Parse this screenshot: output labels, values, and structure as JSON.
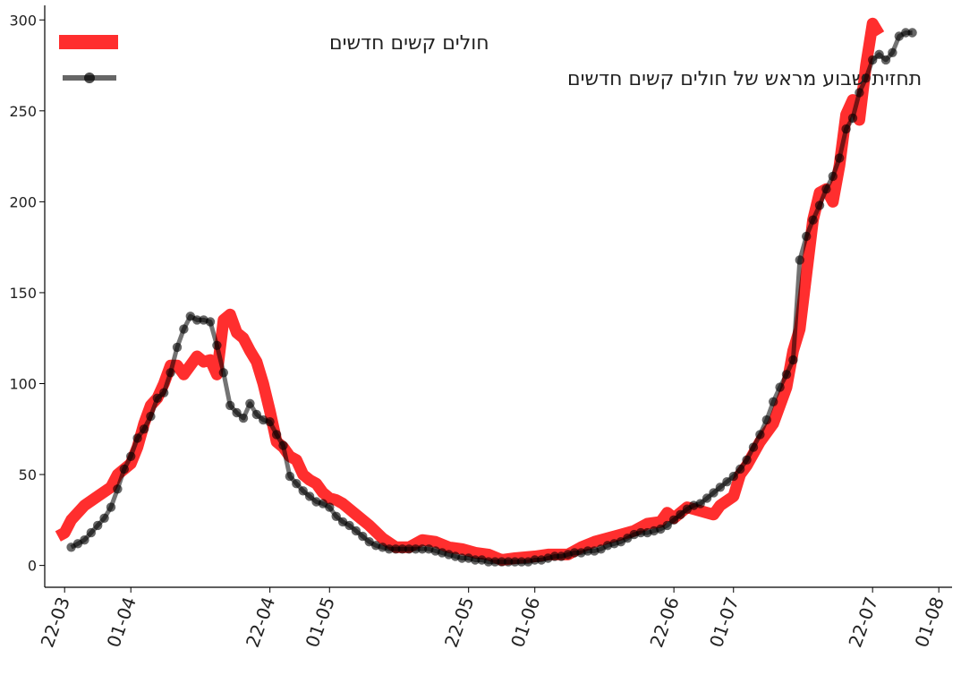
{
  "chart_data": {
    "type": "line",
    "ylim": [
      -12,
      308
    ],
    "yticks": [
      0,
      50,
      100,
      150,
      200,
      250,
      300
    ],
    "xrange": [
      "2020-03-19",
      "2020-08-03"
    ],
    "xticks": [
      {
        "date": "2020-03-22",
        "label": "22-03"
      },
      {
        "date": "2020-04-01",
        "label": "01-04"
      },
      {
        "date": "2020-04-22",
        "label": "22-04"
      },
      {
        "date": "2020-05-01",
        "label": "01-05"
      },
      {
        "date": "2020-05-22",
        "label": "22-05"
      },
      {
        "date": "2020-06-01",
        "label": "01-06"
      },
      {
        "date": "2020-06-22",
        "label": "22-06"
      },
      {
        "date": "2020-07-01",
        "label": "01-07"
      },
      {
        "date": "2020-07-22",
        "label": "22-07"
      },
      {
        "date": "2020-08-01",
        "label": "01-08"
      }
    ],
    "legend": {
      "placement": "top-left"
    },
    "series": [
      {
        "name": "חולים קשים חדשים",
        "color": "#ff0000",
        "style": "thick-line",
        "points": [
          [
            "2020-03-21",
            16
          ],
          [
            "2020-03-22",
            18
          ],
          [
            "2020-03-23",
            25
          ],
          [
            "2020-03-25",
            33
          ],
          [
            "2020-03-27",
            38
          ],
          [
            "2020-03-29",
            43
          ],
          [
            "2020-03-30",
            50
          ],
          [
            "2020-04-01",
            56
          ],
          [
            "2020-04-02",
            65
          ],
          [
            "2020-04-03",
            78
          ],
          [
            "2020-04-04",
            88
          ],
          [
            "2020-04-05",
            92
          ],
          [
            "2020-04-06",
            100
          ],
          [
            "2020-04-07",
            110
          ],
          [
            "2020-04-08",
            110
          ],
          [
            "2020-04-09",
            105
          ],
          [
            "2020-04-10",
            110
          ],
          [
            "2020-04-11",
            115
          ],
          [
            "2020-04-12",
            112
          ],
          [
            "2020-04-13",
            113
          ],
          [
            "2020-04-14",
            105
          ],
          [
            "2020-04-15",
            135
          ],
          [
            "2020-04-16",
            138
          ],
          [
            "2020-04-17",
            128
          ],
          [
            "2020-04-18",
            125
          ],
          [
            "2020-04-19",
            118
          ],
          [
            "2020-04-20",
            112
          ],
          [
            "2020-04-21",
            100
          ],
          [
            "2020-04-22",
            85
          ],
          [
            "2020-04-23",
            68
          ],
          [
            "2020-04-24",
            65
          ],
          [
            "2020-04-25",
            60
          ],
          [
            "2020-04-26",
            58
          ],
          [
            "2020-04-27",
            50
          ],
          [
            "2020-04-28",
            47
          ],
          [
            "2020-04-29",
            45
          ],
          [
            "2020-04-30",
            40
          ],
          [
            "2020-05-01",
            37
          ],
          [
            "2020-05-02",
            36
          ],
          [
            "2020-05-03",
            34
          ],
          [
            "2020-05-05",
            28
          ],
          [
            "2020-05-07",
            22
          ],
          [
            "2020-05-09",
            15
          ],
          [
            "2020-05-11",
            10
          ],
          [
            "2020-05-13",
            10
          ],
          [
            "2020-05-15",
            14
          ],
          [
            "2020-05-17",
            13
          ],
          [
            "2020-05-19",
            10
          ],
          [
            "2020-05-21",
            9
          ],
          [
            "2020-05-23",
            7
          ],
          [
            "2020-05-25",
            6
          ],
          [
            "2020-05-27",
            3
          ],
          [
            "2020-05-29",
            4
          ],
          [
            "2020-06-01",
            5
          ],
          [
            "2020-06-03",
            6
          ],
          [
            "2020-06-06",
            6
          ],
          [
            "2020-06-08",
            10
          ],
          [
            "2020-06-10",
            13
          ],
          [
            "2020-06-12",
            15
          ],
          [
            "2020-06-14",
            17
          ],
          [
            "2020-06-16",
            19
          ],
          [
            "2020-06-18",
            23
          ],
          [
            "2020-06-20",
            24
          ],
          [
            "2020-06-21",
            29
          ],
          [
            "2020-06-22",
            26
          ],
          [
            "2020-06-24",
            32
          ],
          [
            "2020-06-26",
            30
          ],
          [
            "2020-06-28",
            28
          ],
          [
            "2020-06-29",
            33
          ],
          [
            "2020-07-01",
            38
          ],
          [
            "2020-07-02",
            50
          ],
          [
            "2020-07-03",
            55
          ],
          [
            "2020-07-05",
            68
          ],
          [
            "2020-07-07",
            78
          ],
          [
            "2020-07-09",
            98
          ],
          [
            "2020-07-10",
            118
          ],
          [
            "2020-07-11",
            130
          ],
          [
            "2020-07-12",
            160
          ],
          [
            "2020-07-13",
            190
          ],
          [
            "2020-07-14",
            205
          ],
          [
            "2020-07-15",
            207
          ],
          [
            "2020-07-16",
            200
          ],
          [
            "2020-07-17",
            220
          ],
          [
            "2020-07-18",
            248
          ],
          [
            "2020-07-19",
            256
          ],
          [
            "2020-07-20",
            245
          ],
          [
            "2020-07-21",
            275
          ],
          [
            "2020-07-22",
            298
          ],
          [
            "2020-07-23",
            292
          ]
        ]
      },
      {
        "name": "תחזית שבוע מראש של חולים קשים חדשים",
        "color": "#000000",
        "style": "line-with-markers",
        "points": [
          [
            "2020-03-23",
            10
          ],
          [
            "2020-03-24",
            12
          ],
          [
            "2020-03-25",
            14
          ],
          [
            "2020-03-26",
            18
          ],
          [
            "2020-03-27",
            22
          ],
          [
            "2020-03-28",
            26
          ],
          [
            "2020-03-29",
            32
          ],
          [
            "2020-03-30",
            42
          ],
          [
            "2020-03-31",
            53
          ],
          [
            "2020-04-01",
            60
          ],
          [
            "2020-04-02",
            70
          ],
          [
            "2020-04-03",
            75
          ],
          [
            "2020-04-04",
            82
          ],
          [
            "2020-04-05",
            92
          ],
          [
            "2020-04-06",
            95
          ],
          [
            "2020-04-07",
            106
          ],
          [
            "2020-04-08",
            120
          ],
          [
            "2020-04-09",
            130
          ],
          [
            "2020-04-10",
            137
          ],
          [
            "2020-04-11",
            135
          ],
          [
            "2020-04-12",
            135
          ],
          [
            "2020-04-13",
            134
          ],
          [
            "2020-04-14",
            121
          ],
          [
            "2020-04-15",
            106
          ],
          [
            "2020-04-16",
            88
          ],
          [
            "2020-04-17",
            84
          ],
          [
            "2020-04-18",
            81
          ],
          [
            "2020-04-19",
            89
          ],
          [
            "2020-04-20",
            83
          ],
          [
            "2020-04-21",
            80
          ],
          [
            "2020-04-22",
            79
          ],
          [
            "2020-04-23",
            72
          ],
          [
            "2020-04-24",
            66
          ],
          [
            "2020-04-25",
            49
          ],
          [
            "2020-04-26",
            45
          ],
          [
            "2020-04-27",
            41
          ],
          [
            "2020-04-28",
            38
          ],
          [
            "2020-04-29",
            35
          ],
          [
            "2020-04-30",
            34
          ],
          [
            "2020-05-01",
            32
          ],
          [
            "2020-05-02",
            27
          ],
          [
            "2020-05-03",
            24
          ],
          [
            "2020-05-04",
            22
          ],
          [
            "2020-05-05",
            19
          ],
          [
            "2020-05-06",
            16
          ],
          [
            "2020-05-07",
            13
          ],
          [
            "2020-05-08",
            11
          ],
          [
            "2020-05-09",
            10
          ],
          [
            "2020-05-10",
            9
          ],
          [
            "2020-05-11",
            9
          ],
          [
            "2020-05-12",
            9
          ],
          [
            "2020-05-13",
            9
          ],
          [
            "2020-05-14",
            9
          ],
          [
            "2020-05-15",
            9
          ],
          [
            "2020-05-16",
            9
          ],
          [
            "2020-05-17",
            8
          ],
          [
            "2020-05-18",
            7
          ],
          [
            "2020-05-19",
            6
          ],
          [
            "2020-05-20",
            5
          ],
          [
            "2020-05-21",
            4
          ],
          [
            "2020-05-22",
            4
          ],
          [
            "2020-05-23",
            3
          ],
          [
            "2020-05-24",
            3
          ],
          [
            "2020-05-25",
            2
          ],
          [
            "2020-05-26",
            2
          ],
          [
            "2020-05-27",
            2
          ],
          [
            "2020-05-28",
            2
          ],
          [
            "2020-05-29",
            2
          ],
          [
            "2020-05-30",
            2
          ],
          [
            "2020-05-31",
            2
          ],
          [
            "2020-06-01",
            3
          ],
          [
            "2020-06-02",
            3
          ],
          [
            "2020-06-03",
            4
          ],
          [
            "2020-06-04",
            5
          ],
          [
            "2020-06-05",
            5
          ],
          [
            "2020-06-06",
            6
          ],
          [
            "2020-06-07",
            7
          ],
          [
            "2020-06-08",
            7
          ],
          [
            "2020-06-09",
            8
          ],
          [
            "2020-06-10",
            8
          ],
          [
            "2020-06-11",
            9
          ],
          [
            "2020-06-12",
            11
          ],
          [
            "2020-06-13",
            12
          ],
          [
            "2020-06-14",
            13
          ],
          [
            "2020-06-15",
            15
          ],
          [
            "2020-06-16",
            17
          ],
          [
            "2020-06-17",
            18
          ],
          [
            "2020-06-18",
            18
          ],
          [
            "2020-06-19",
            19
          ],
          [
            "2020-06-20",
            20
          ],
          [
            "2020-06-21",
            22
          ],
          [
            "2020-06-22",
            25
          ],
          [
            "2020-06-23",
            28
          ],
          [
            "2020-06-24",
            31
          ],
          [
            "2020-06-25",
            33
          ],
          [
            "2020-06-26",
            34
          ],
          [
            "2020-06-27",
            37
          ],
          [
            "2020-06-28",
            40
          ],
          [
            "2020-06-29",
            43
          ],
          [
            "2020-06-30",
            46
          ],
          [
            "2020-07-01",
            49
          ],
          [
            "2020-07-02",
            53
          ],
          [
            "2020-07-03",
            58
          ],
          [
            "2020-07-04",
            65
          ],
          [
            "2020-07-05",
            72
          ],
          [
            "2020-07-06",
            80
          ],
          [
            "2020-07-07",
            90
          ],
          [
            "2020-07-08",
            98
          ],
          [
            "2020-07-09",
            105
          ],
          [
            "2020-07-10",
            113
          ],
          [
            "2020-07-11",
            168
          ],
          [
            "2020-07-12",
            181
          ],
          [
            "2020-07-13",
            190
          ],
          [
            "2020-07-14",
            198
          ],
          [
            "2020-07-15",
            207
          ],
          [
            "2020-07-16",
            214
          ],
          [
            "2020-07-17",
            224
          ],
          [
            "2020-07-18",
            240
          ],
          [
            "2020-07-19",
            246
          ],
          [
            "2020-07-20",
            260
          ],
          [
            "2020-07-21",
            268
          ],
          [
            "2020-07-22",
            278
          ],
          [
            "2020-07-23",
            281
          ],
          [
            "2020-07-24",
            278
          ],
          [
            "2020-07-25",
            282
          ],
          [
            "2020-07-26",
            291
          ],
          [
            "2020-07-27",
            293
          ],
          [
            "2020-07-28",
            293
          ]
        ]
      }
    ]
  }
}
